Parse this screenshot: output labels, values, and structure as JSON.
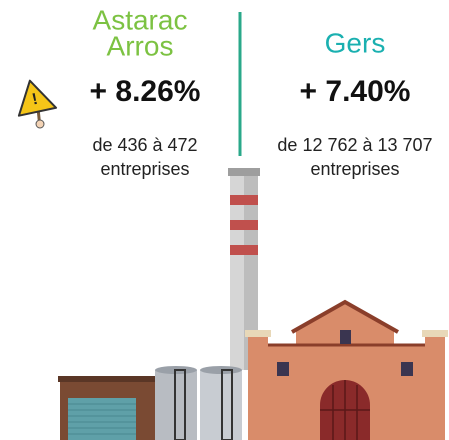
{
  "left": {
    "name_lines": [
      "Astarac",
      "Arros"
    ],
    "change": "+ 8.26%",
    "detail_lines": [
      "de 436 à 472",
      "entreprises"
    ]
  },
  "right": {
    "name": "Gers",
    "change": "+ 7.40%",
    "detail_lines": [
      "de 12 762 à 13 707",
      "entreprises"
    ]
  }
}
